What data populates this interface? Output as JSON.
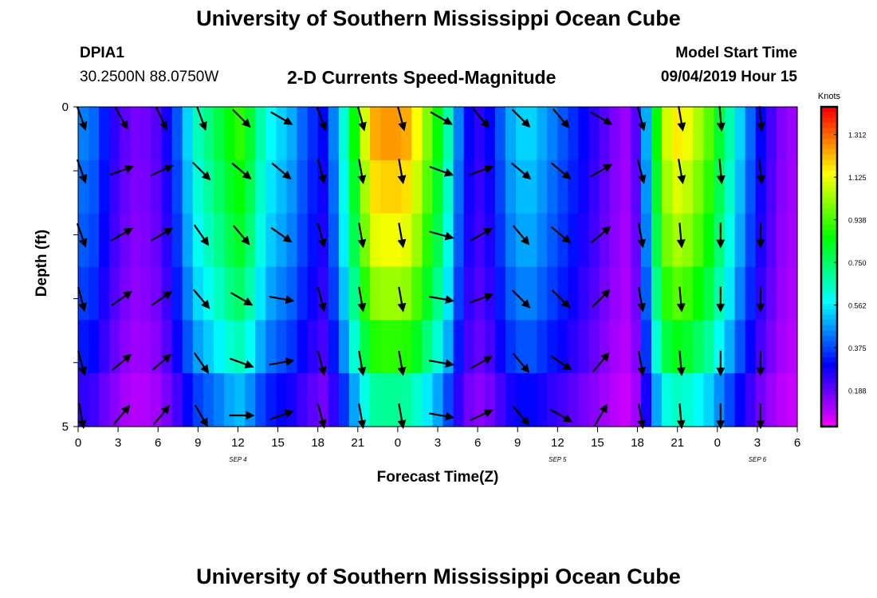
{
  "header": {
    "title": "University of Southern Mississippi Ocean Cube",
    "station": "DPIA1",
    "coords": "30.2500N 88.0750W",
    "subtitle": "2-D Currents Speed-Magnitude",
    "model_start_label": "Model Start Time",
    "model_start_value": "09/04/2019 Hour 15"
  },
  "footer": {
    "title": "University of Southern Mississippi Ocean Cube"
  },
  "chart_data": {
    "type": "heatmap",
    "title": "2-D Currents Speed-Magnitude",
    "xlabel": "Forecast Time(Z)",
    "ylabel": "Depth (ft)",
    "x_ticks": [
      "0",
      "3",
      "6",
      "9",
      "12",
      "15",
      "18",
      "21",
      "0",
      "3",
      "6",
      "9",
      "12",
      "15",
      "18",
      "21",
      "0",
      "3",
      "6"
    ],
    "y_ticks": [
      "0",
      "5"
    ],
    "ylim": [
      0,
      5
    ],
    "day_labels": [
      {
        "text": "SEP 4",
        "tick_index": 4
      },
      {
        "text": "SEP 5",
        "tick_index": 12
      },
      {
        "text": "SEP 6",
        "tick_index": 17
      }
    ],
    "colorbar": {
      "unit": "Knots",
      "ticks": [
        "1.312",
        "1.125",
        "0.938",
        "0.750",
        "0.562",
        "0.375",
        "0.188"
      ],
      "range": [
        0.0,
        1.5
      ]
    },
    "hours": 54,
    "depth_layers": 5,
    "speed_profile_knots": [
      0.45,
      0.42,
      0.33,
      0.25,
      0.19,
      0.16,
      0.17,
      0.2,
      0.28,
      0.4,
      0.55,
      0.68,
      0.75,
      0.82,
      0.9,
      0.95,
      0.85,
      0.7,
      0.6,
      0.55,
      0.5,
      0.42,
      0.35,
      0.3,
      0.45,
      0.65,
      0.9,
      1.15,
      1.3,
      1.32,
      1.32,
      1.3,
      1.2,
      1.05,
      0.9,
      0.7,
      0.45,
      0.3,
      0.25,
      0.3,
      0.4,
      0.5,
      0.55,
      0.55,
      0.5,
      0.45,
      0.4,
      0.35,
      0.3,
      0.25,
      0.2,
      0.15,
      0.12,
      0.2,
      0.5,
      0.9,
      1.15,
      1.22,
      1.18,
      1.1,
      1.0,
      0.85,
      0.7,
      0.55,
      0.42,
      0.3,
      0.22,
      0.15,
      0.12
    ],
    "layer_factors": [
      1.0,
      0.95,
      0.9,
      0.82,
      0.72,
      0.55
    ],
    "arrow_hours": [
      0,
      3,
      6,
      9,
      12,
      15,
      18,
      21,
      24,
      27,
      30,
      33,
      36,
      39,
      42,
      45,
      48,
      51
    ],
    "arrow_depths": [
      0.0,
      1.0,
      2.0,
      3.0,
      4.0,
      5.0
    ],
    "arrow_direction_deg": [
      [
        160,
        150,
        155,
        160,
        135,
        120,
        160,
        165,
        165,
        120,
        140,
        135,
        140,
        120,
        165,
        170,
        175,
        175
      ],
      [
        160,
        70,
        65,
        135,
        130,
        130,
        165,
        170,
        170,
        110,
        70,
        130,
        130,
        60,
        165,
        170,
        175,
        175
      ],
      [
        160,
        60,
        60,
        145,
        140,
        125,
        165,
        170,
        170,
        105,
        60,
        140,
        130,
        50,
        170,
        175,
        180,
        180
      ],
      [
        165,
        55,
        55,
        140,
        120,
        100,
        165,
        170,
        170,
        100,
        70,
        135,
        135,
        45,
        170,
        175,
        180,
        180
      ],
      [
        165,
        50,
        50,
        145,
        110,
        80,
        165,
        170,
        170,
        100,
        60,
        140,
        125,
        40,
        170,
        175,
        180,
        180
      ],
      [
        170,
        40,
        40,
        150,
        90,
        70,
        165,
        170,
        170,
        100,
        65,
        140,
        120,
        30,
        170,
        175,
        180,
        180
      ]
    ]
  }
}
